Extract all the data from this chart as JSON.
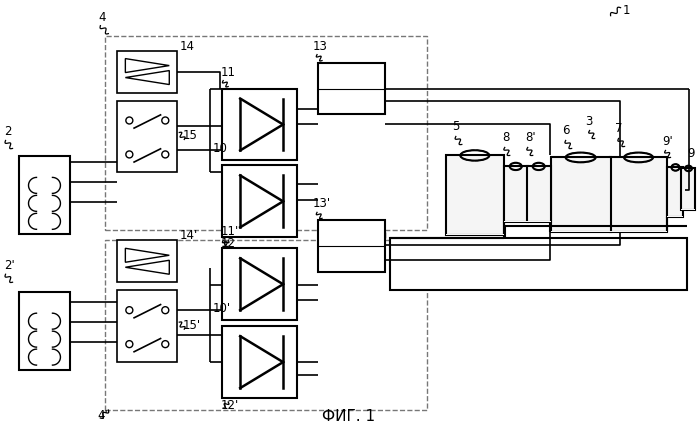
{
  "bg_color": "#ffffff",
  "lc": "#1a1a1a",
  "dc": "#666666",
  "fs": 8.5,
  "title": "ФИГ. 1"
}
